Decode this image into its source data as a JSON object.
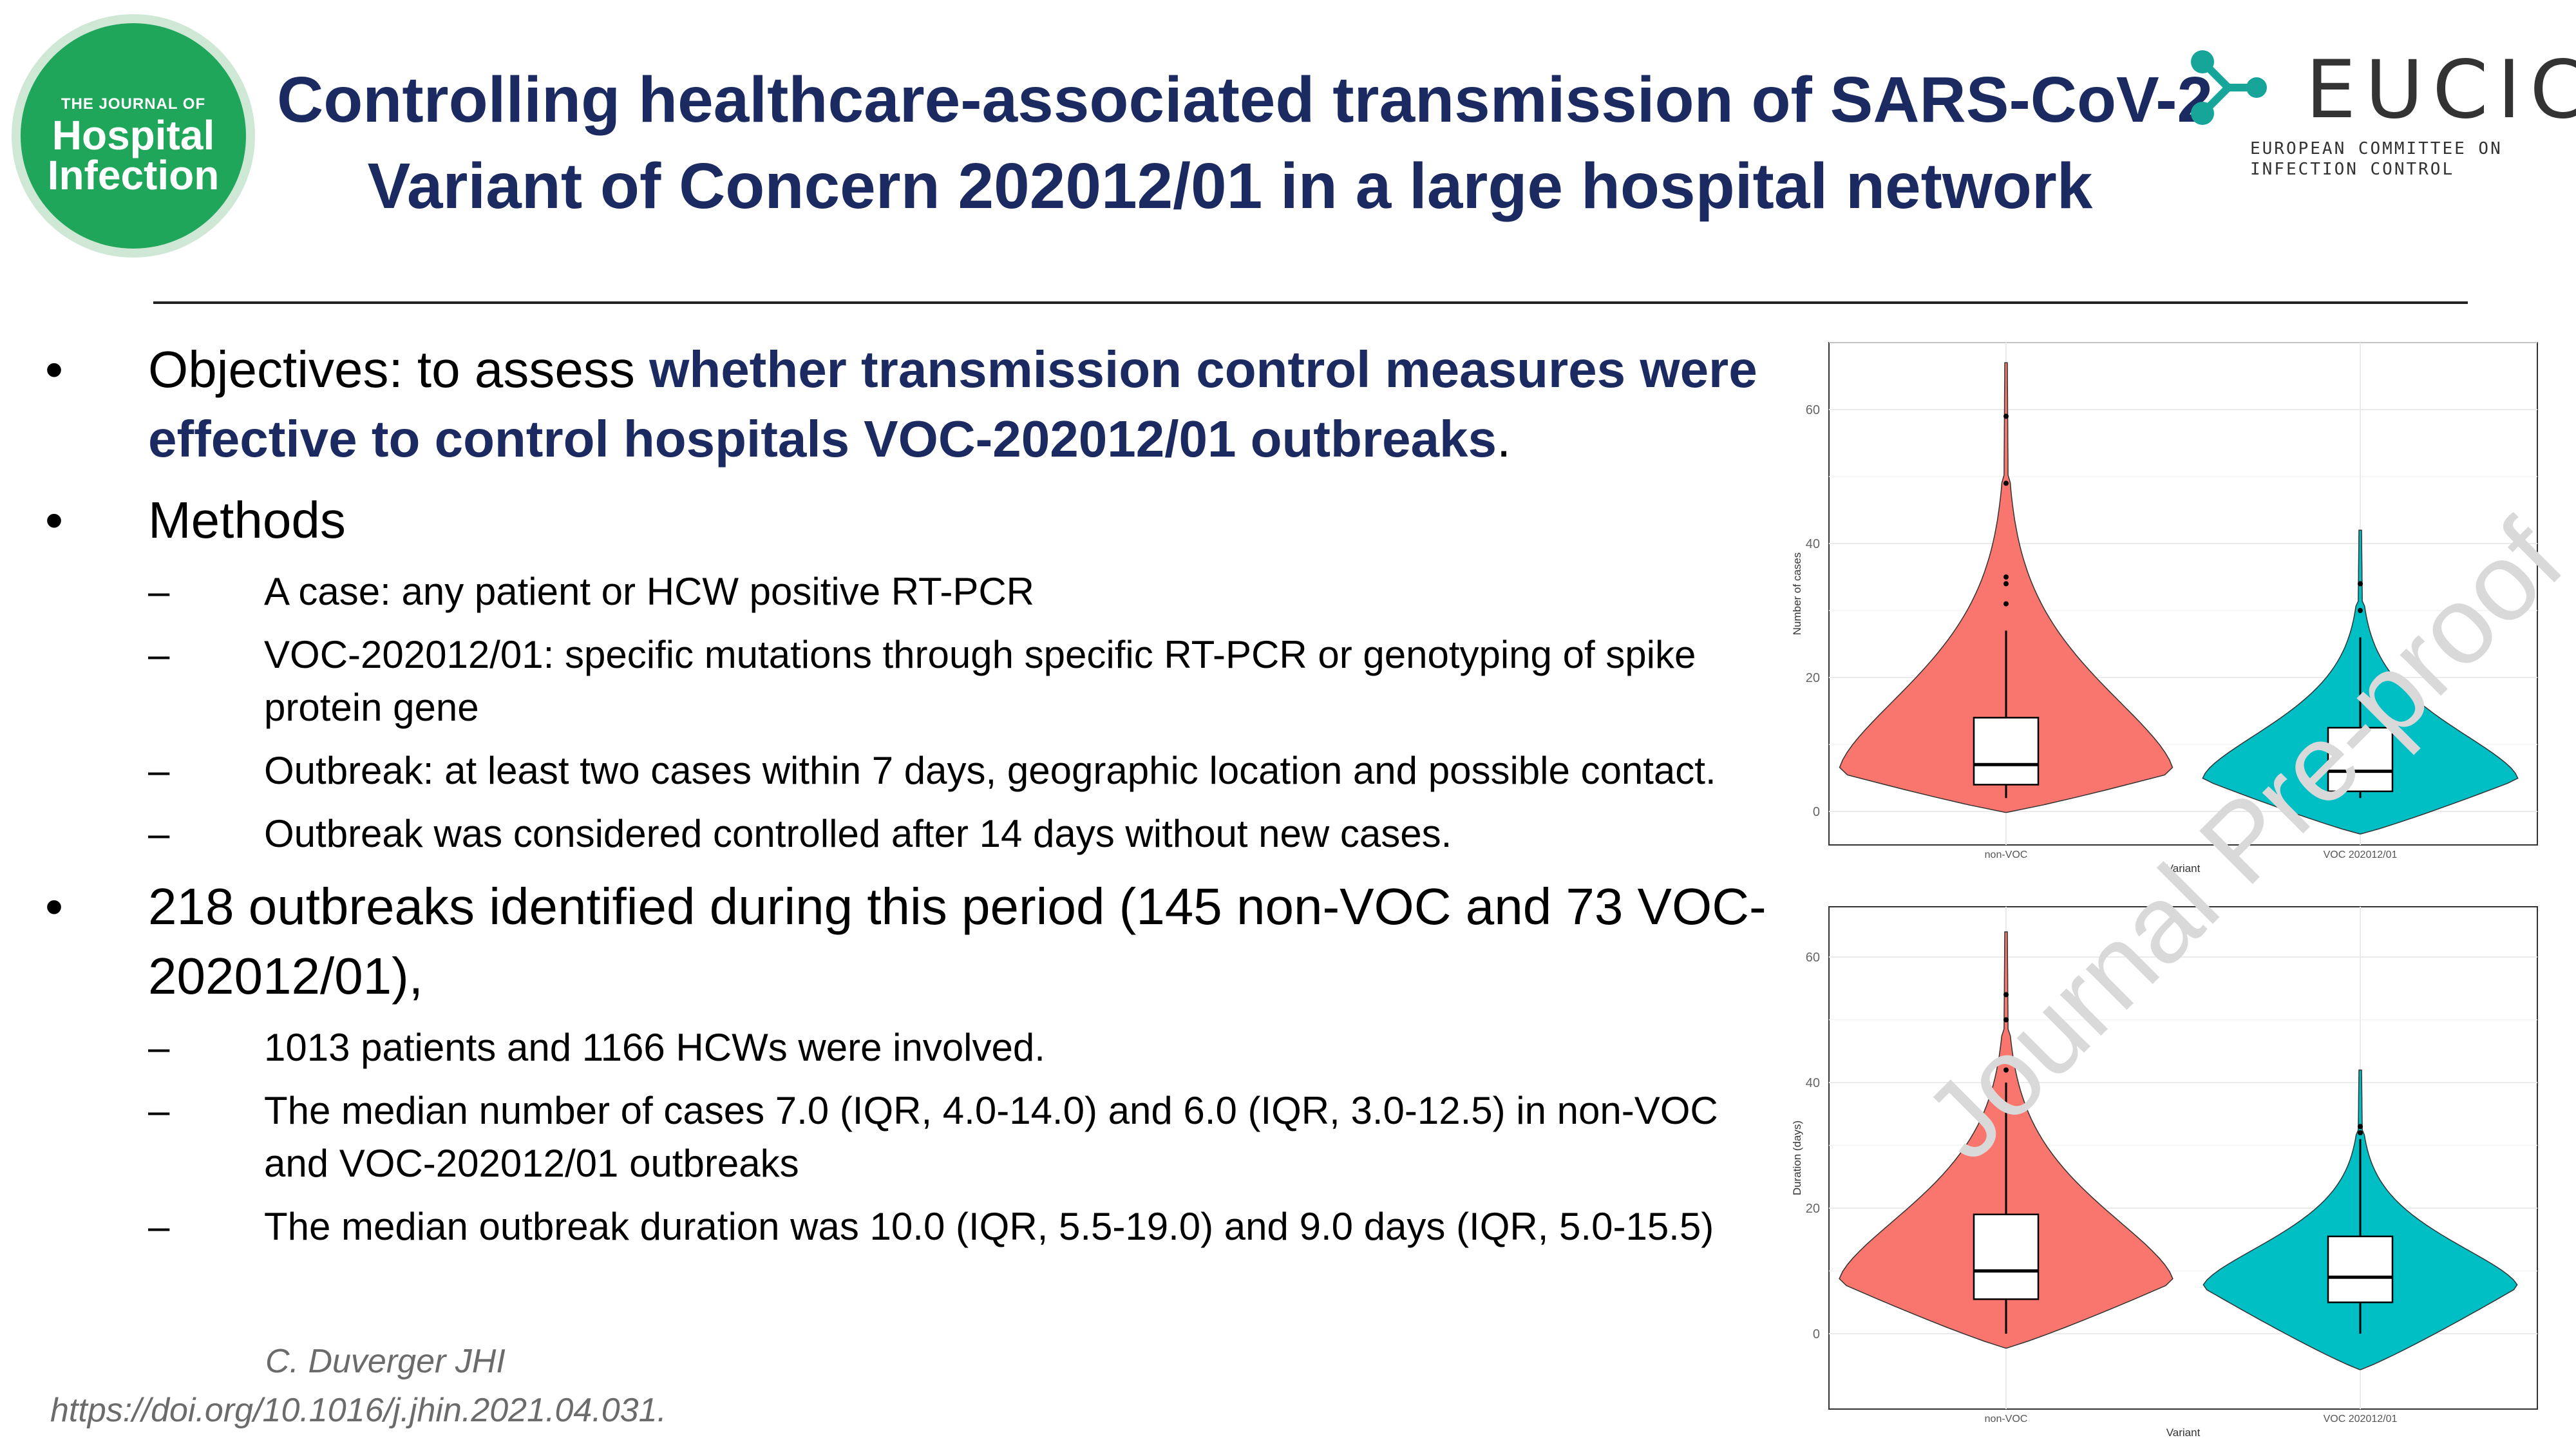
{
  "journal_logo": {
    "line1": "THE JOURNAL OF",
    "line2": "Hospital",
    "line3": "Infection"
  },
  "title": {
    "line1": "Controlling healthcare-associated transmission of SARS-CoV-2",
    "line2": "Variant of Concern 202012/01 in a large hospital network"
  },
  "eucic": {
    "name": "EUCIC",
    "sub1": "EUROPEAN COMMITTEE ON",
    "sub2": "INFECTION CONTROL"
  },
  "bullets": {
    "objectives_prefix": "Objectives: to assess ",
    "objectives_bold": "whether transmission control measures were effective to control hospitals VOC-202012/01 outbreaks",
    "objectives_suffix": ".",
    "methods": "Methods",
    "methods_items": [
      "A case: any patient or HCW positive RT-PCR",
      "VOC-202012/01: specific mutations through specific RT-PCR or genotyping of spike protein gene",
      "Outbreak: at least two cases within 7 days, geographic location and possible contact.",
      "Outbreak was considered controlled after 14 days without new cases."
    ],
    "outbreaks": "218 outbreaks identified during this period (145 non-VOC and 73 VOC-202012/01),",
    "outbreaks_items": [
      "1013 patients and 1166 HCWs were involved.",
      "The median number of cases 7.0 (IQR, 4.0-14.0) and 6.0 (IQR, 3.0-12.5) in non-VOC and VOC-202012/01 outbreaks",
      "The median outbreak duration was 10.0 (IQR, 5.5-19.0) and 9.0 days (IQR, 5.0-15.5)"
    ]
  },
  "citation": {
    "author": "C. Duverger JHI",
    "doi": "https://doi.org/10.1016/j.jhin.2021.04.031."
  },
  "watermark": "Journal Pre-proof",
  "colors": {
    "title": "#1b2a60",
    "non_voc": "#f8766d",
    "voc": "#00bfc4"
  },
  "chart_data": [
    {
      "type": "violin",
      "xlabel": "Variant",
      "ylabel": "Number of cases",
      "categories": [
        "non-VOC",
        "VOC 202012/01"
      ],
      "yticks": [
        0,
        20,
        40,
        60
      ],
      "ylim": [
        -5,
        70
      ],
      "series": [
        {
          "min": 2,
          "q1": 4,
          "median": 7,
          "q3": 14,
          "whisker_high": 27,
          "max": 67,
          "outliers": [
            31,
            34,
            35,
            49,
            59
          ]
        },
        {
          "min": 2,
          "q1": 3,
          "median": 6,
          "q3": 12.5,
          "whisker_high": 26,
          "max": 42,
          "outliers": [
            30,
            34
          ]
        }
      ]
    },
    {
      "type": "violin",
      "xlabel": "Variant",
      "ylabel": "Duration (days)",
      "categories": [
        "non-VOC",
        "VOC 202012/01"
      ],
      "yticks": [
        0,
        20,
        40,
        60
      ],
      "ylim": [
        -12,
        68
      ],
      "series": [
        {
          "min": 0,
          "q1": 5.5,
          "median": 10,
          "q3": 19,
          "whisker_high": 40,
          "max": 64,
          "outliers": [
            42,
            50,
            54
          ]
        },
        {
          "min": 0,
          "q1": 5,
          "median": 9,
          "q3": 15.5,
          "whisker_high": 31,
          "max": 42,
          "outliers": [
            32,
            33
          ]
        }
      ]
    }
  ]
}
